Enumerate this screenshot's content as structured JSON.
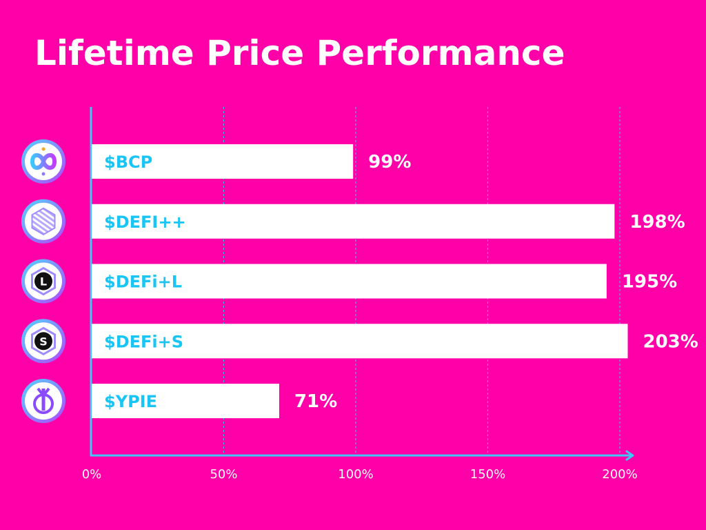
{
  "colors": {
    "background": "#ff00a8",
    "bar": "#ffffff",
    "label": "#19c5f5",
    "axis": "#3fc8f5",
    "grid": "#3fc8f5",
    "text": "#ffffff"
  },
  "chart_data": {
    "type": "bar",
    "orientation": "horizontal",
    "title": "Lifetime Price Performance",
    "xlabel": "",
    "ylabel": "",
    "categories": [
      "$BCP",
      "$DEFI++",
      "$DEFi+L",
      "$DEFi+S",
      "$YPIE"
    ],
    "value_labels": [
      "99%",
      "198%",
      "195%",
      "203%",
      "71%"
    ],
    "values": [
      99,
      198,
      195,
      203,
      71
    ],
    "x_ticks": [
      0,
      50,
      100,
      150,
      200
    ],
    "x_tick_labels": [
      "0%",
      "50%",
      "100%",
      "150%",
      "200%"
    ],
    "xlim": [
      0,
      210
    ],
    "grid": true,
    "grid_style": "dashed-vertical",
    "icons": [
      "infinity-logo-icon",
      "striped-hexagon-icon",
      "letter-l-hexagon-icon",
      "letter-s-hexagon-icon",
      "yearn-logo-icon"
    ],
    "icon_letters": [
      "",
      "",
      "L",
      "S",
      ""
    ]
  }
}
